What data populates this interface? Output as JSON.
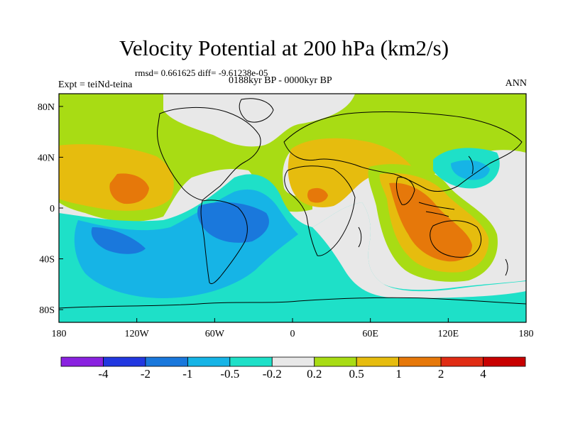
{
  "title": "Velocity Potential at 200 hPa (km2/s)",
  "stats_line": "rmsd= 0.661625 diff= -9.61238e-05",
  "period": "0188kyr BP - 0000kyr BP",
  "experiment": "Expt = teiNd-teina",
  "season": "ANN",
  "axes": {
    "x_ticks": [
      "180",
      "120W",
      "60W",
      "0",
      "60E",
      "120E",
      "180"
    ],
    "x_values": [
      -180,
      -120,
      -60,
      0,
      60,
      120,
      180
    ],
    "y_ticks": [
      "80N",
      "40N",
      "0",
      "40S",
      "80S"
    ],
    "y_values": [
      80,
      40,
      0,
      -40,
      -80
    ]
  },
  "colorbar": {
    "labels": [
      "-4",
      "-2",
      "-1",
      "-0.5",
      "-0.2",
      "0.2",
      "0.5",
      "1",
      "2",
      "4"
    ],
    "colors": [
      "#8a22e0",
      "#2238e0",
      "#1a78dc",
      "#16b4e6",
      "#1ee0c8",
      "#e8e8e8",
      "#a8dc14",
      "#e6bc0e",
      "#e6780a",
      "#e02c14",
      "#c80000"
    ]
  },
  "fields": {
    "centers": [
      {
        "name": "east-pacific-high",
        "lon": -145,
        "lat": 22,
        "level": 2
      },
      {
        "name": "africa-high",
        "lon": 22,
        "lat": 10,
        "level": 2
      },
      {
        "name": "maritime-continent-high",
        "lon": 95,
        "lat": 0,
        "level": 2
      },
      {
        "name": "south-america-low",
        "lon": -55,
        "lat": -10,
        "level": -1
      },
      {
        "name": "south-pacific-low",
        "lon": -140,
        "lat": -20,
        "level": -1
      },
      {
        "name": "japan-low",
        "lon": 140,
        "lat": 38,
        "level": -1
      }
    ]
  },
  "colors": {
    "background": "#ffffff",
    "coast": "#000000"
  }
}
